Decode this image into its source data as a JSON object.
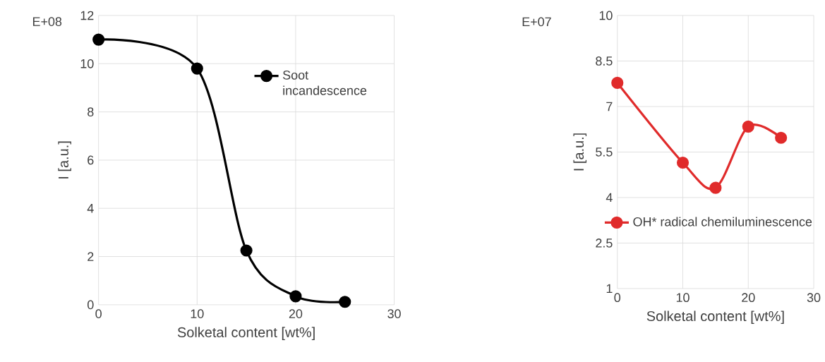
{
  "chart_data": [
    {
      "type": "line",
      "xlabel": "Solketal content [wt%]",
      "ylabel": "I [a.u.]",
      "annotations": [
        "E+08"
      ],
      "x": [
        0,
        10,
        15,
        20,
        25
      ],
      "xlim": [
        0,
        30
      ],
      "xticks": [
        0,
        10,
        20,
        30
      ],
      "ylim": [
        0,
        12
      ],
      "yticks": [
        0,
        2,
        4,
        6,
        8,
        10,
        12
      ],
      "grid": true,
      "legend": "top right",
      "marker": "circle",
      "line_style": "solid",
      "series": [
        {
          "name": "Soot incandescence",
          "color": "#000000",
          "values": [
            11.0,
            9.8,
            2.25,
            0.35,
            0.12
          ]
        }
      ]
    },
    {
      "type": "line",
      "xlabel": "Solketal content [wt%]",
      "ylabel": "I [a.u.]",
      "annotations": [
        "E+07"
      ],
      "x": [
        0,
        10,
        15,
        20,
        25
      ],
      "xlim": [
        0,
        30
      ],
      "xticks": [
        0,
        10,
        20,
        30
      ],
      "ylim": [
        1,
        10
      ],
      "yticks": [
        1,
        2.5,
        4,
        5.5,
        7,
        8.5,
        10
      ],
      "grid": true,
      "legend": "bottom",
      "marker": "circle",
      "line_style": "solid",
      "series": [
        {
          "name": "OH* radical chemiluminescence",
          "color": "#e02b2b",
          "values": [
            7.78,
            5.15,
            4.32,
            6.34,
            5.97
          ]
        }
      ]
    }
  ]
}
